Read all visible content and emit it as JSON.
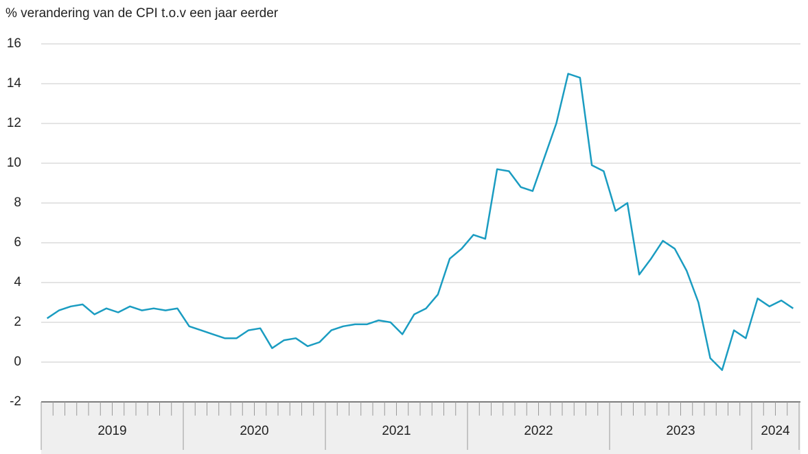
{
  "chart_data": {
    "type": "line",
    "title": "% verandering van de CPI t.o.v een jaar eerder",
    "categories": [
      "2019",
      null,
      null,
      null,
      null,
      null,
      null,
      null,
      null,
      null,
      null,
      null,
      "2020",
      null,
      null,
      null,
      null,
      null,
      null,
      null,
      null,
      null,
      null,
      null,
      "2021",
      null,
      null,
      null,
      null,
      null,
      null,
      null,
      null,
      null,
      null,
      null,
      "2022",
      null,
      null,
      null,
      null,
      null,
      null,
      null,
      null,
      null,
      null,
      null,
      "2023",
      null,
      null,
      null,
      null,
      null,
      null,
      null,
      null,
      null,
      null,
      null,
      "2024",
      null,
      null,
      null
    ],
    "series": [
      {
        "name": "CPI",
        "color": "#1a9cc1",
        "values": [
          2.2,
          2.6,
          2.8,
          2.9,
          2.4,
          2.7,
          2.5,
          2.8,
          2.6,
          2.7,
          2.6,
          2.7,
          1.8,
          1.6,
          1.4,
          1.2,
          1.2,
          1.6,
          1.7,
          0.7,
          1.1,
          1.2,
          0.8,
          1.0,
          1.6,
          1.8,
          1.9,
          1.9,
          2.1,
          2.0,
          1.4,
          2.4,
          2.7,
          3.4,
          5.2,
          5.7,
          6.4,
          6.2,
          9.7,
          9.6,
          8.8,
          8.6,
          10.3,
          12.0,
          14.5,
          14.3,
          9.9,
          9.6,
          7.6,
          8.0,
          4.4,
          5.2,
          6.1,
          5.7,
          4.6,
          3.0,
          0.2,
          -0.4,
          1.6,
          1.2,
          3.2,
          2.8,
          3.1,
          2.7
        ]
      }
    ],
    "ylim": [
      -2,
      16
    ],
    "yticks": [
      -2,
      0,
      2,
      4,
      6,
      8,
      10,
      12,
      14,
      16
    ],
    "grid": true
  }
}
